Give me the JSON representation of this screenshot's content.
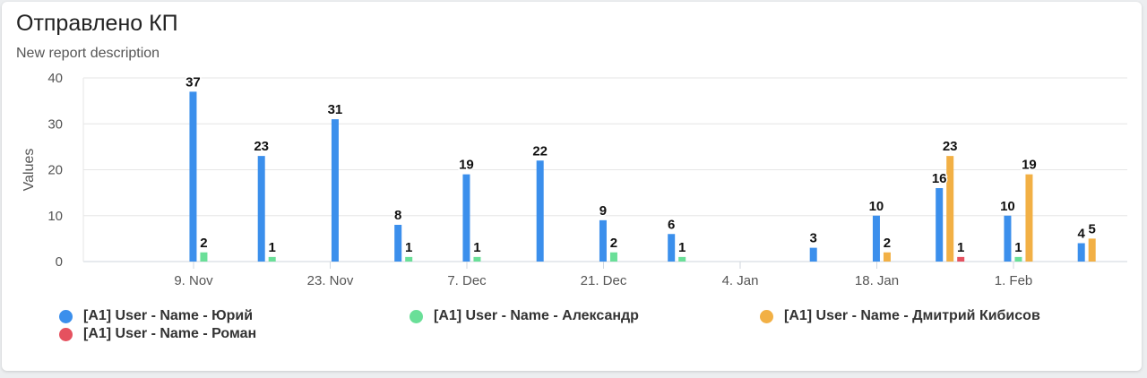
{
  "report": {
    "title": "Отправлено КП",
    "subtitle": "New report description"
  },
  "chart_data": {
    "type": "bar",
    "ylabel": "Values",
    "ylim": [
      0,
      40
    ],
    "yticks": [
      0,
      10,
      20,
      30,
      40
    ],
    "grid": true,
    "legend_position": "bottom",
    "x": [
      "2023-11-06",
      "2023-11-13",
      "2023-11-20",
      "2023-11-27",
      "2023-12-04",
      "2023-12-11",
      "2023-12-18",
      "2023-12-25",
      "2024-01-01",
      "2024-01-08",
      "2024-01-15",
      "2024-01-22",
      "2024-01-29",
      "2024-02-05"
    ],
    "x_tick_labels": [
      {
        "label": "9. Nov",
        "date": "2023-11-09"
      },
      {
        "label": "23. Nov",
        "date": "2023-11-23"
      },
      {
        "label": "7. Dec",
        "date": "2023-12-07"
      },
      {
        "label": "21. Dec",
        "date": "2023-12-21"
      },
      {
        "label": "4. Jan",
        "date": "2024-01-04"
      },
      {
        "label": "18. Jan",
        "date": "2024-01-18"
      },
      {
        "label": "1. Feb",
        "date": "2024-02-01"
      }
    ],
    "series": [
      {
        "name": "[A1] User - Name - Юрий",
        "color": "#3b8fec",
        "values": [
          37,
          23,
          31,
          8,
          19,
          22,
          9,
          6,
          null,
          3,
          10,
          16,
          10,
          4
        ]
      },
      {
        "name": "[A1] User - Name - Александр",
        "color": "#6adf98",
        "values": [
          2,
          1,
          null,
          1,
          1,
          null,
          2,
          1,
          null,
          null,
          null,
          null,
          1,
          null
        ]
      },
      {
        "name": "[A1] User - Name - Дмитрий Кибисов",
        "color": "#f2b045",
        "values": [
          null,
          null,
          null,
          null,
          null,
          null,
          null,
          null,
          null,
          null,
          2,
          23,
          19,
          5
        ]
      },
      {
        "name": "[A1] User - Name - Роман",
        "color": "#e5515f",
        "values": [
          null,
          null,
          null,
          null,
          null,
          null,
          null,
          null,
          null,
          null,
          null,
          1,
          null,
          null
        ]
      }
    ]
  }
}
